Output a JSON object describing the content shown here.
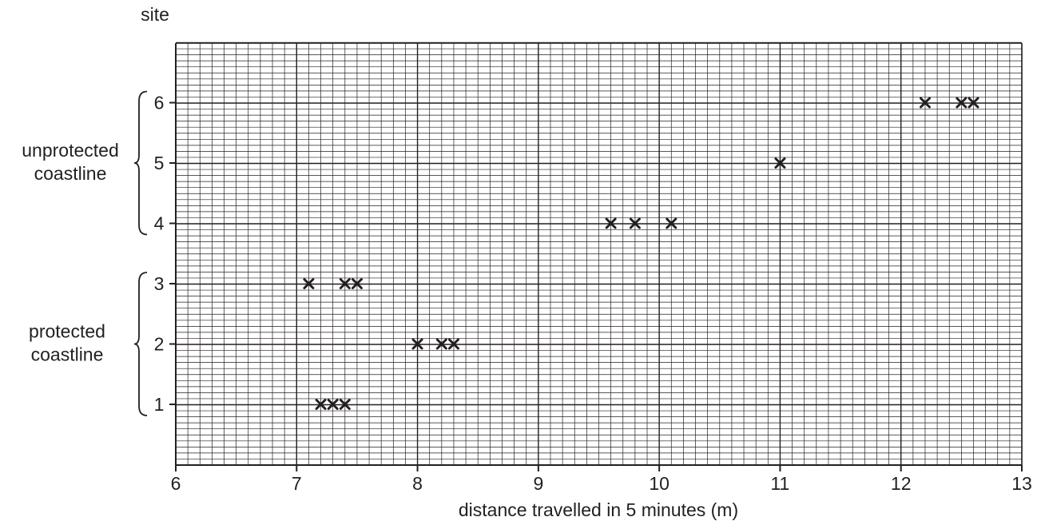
{
  "chart_data": {
    "type": "scatter",
    "title": "",
    "xlabel": "distance travelled in 5 minutes (m)",
    "ylabel": "site",
    "xlim": [
      6,
      13
    ],
    "ylim": [
      -0.1,
      6.1
    ],
    "x_ticks": [
      "6",
      "7",
      "8",
      "9",
      "10",
      "11",
      "12",
      "13"
    ],
    "y_ticks": [
      "1",
      "2",
      "3",
      "4",
      "5",
      "6"
    ],
    "groups": [
      {
        "label": "unprotected coastline",
        "sites": [
          4,
          5,
          6
        ]
      },
      {
        "label": "protected coastline",
        "sites": [
          1,
          2,
          3
        ]
      }
    ],
    "marker": "cross",
    "grid": true,
    "points": [
      {
        "site": 1,
        "x": [
          7.2,
          7.3,
          7.4
        ]
      },
      {
        "site": 2,
        "x": [
          8.0,
          8.2,
          8.3
        ]
      },
      {
        "site": 3,
        "x": [
          7.1,
          7.4,
          7.5
        ]
      },
      {
        "site": 4,
        "x": [
          9.6,
          9.8,
          10.1
        ]
      },
      {
        "site": 5,
        "x": [
          11.0
        ]
      },
      {
        "site": 6,
        "x": [
          12.2,
          12.5,
          12.6
        ]
      }
    ],
    "colors": {
      "ink": "#231f20",
      "background": "#ffffff"
    }
  }
}
